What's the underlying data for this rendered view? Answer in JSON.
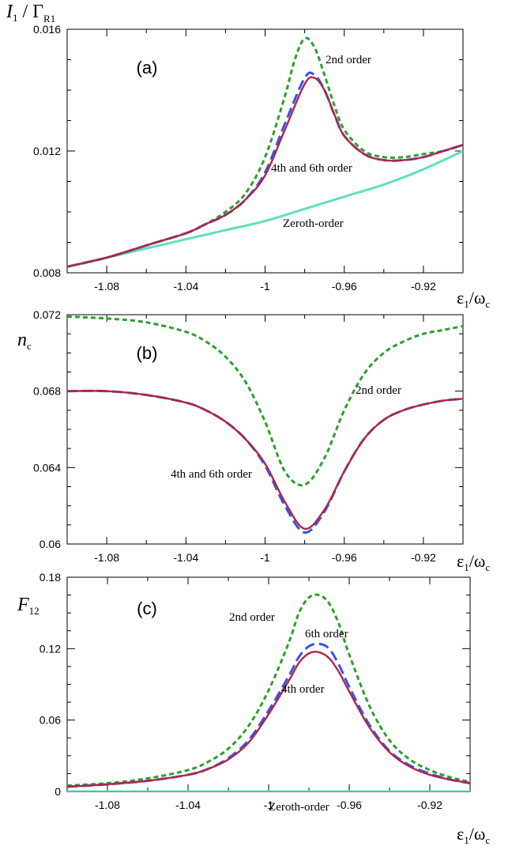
{
  "chart_data": [
    {
      "type": "line",
      "panel_label": "(a)",
      "ylabel": {
        "main": "I",
        "sub1": "1",
        "sep": " / Γ",
        "sub2": "R1"
      },
      "xlabel": {
        "main": "ε",
        "sub1": "1",
        "sep": "/ω",
        "sub2": "c"
      },
      "xlim": [
        -1.1,
        -0.9
      ],
      "ylim": [
        0.008,
        0.016
      ],
      "xticks": [
        -1.08,
        -1.04,
        -1,
        -0.96,
        -0.92
      ],
      "xtick_labels": [
        "-1.08",
        "-1.04",
        "-1",
        "-0.96",
        "-0.92"
      ],
      "yticks": [
        0.008,
        0.012,
        0.016
      ],
      "ytick_labels": [
        "0.008",
        "0.012",
        "0.016"
      ],
      "annotations": [
        "2nd order",
        "4th and 6th order",
        "Zeroth-order"
      ],
      "colors": {
        "zeroth": "#5fe0c0",
        "second": "#2ca02c",
        "sixth": "#3355ee",
        "fourth": "#e02020",
        "fourth_under": "#7a2a7a"
      },
      "series": [
        {
          "key": "zeroth",
          "x": [
            -1.1,
            -1.08,
            -1.06,
            -1.04,
            -1.02,
            -1.0,
            -0.98,
            -0.96,
            -0.94,
            -0.92,
            -0.9
          ],
          "y": [
            0.0082,
            0.0085,
            0.0088,
            0.0091,
            0.0094,
            0.0097,
            0.0101,
            0.0105,
            0.0109,
            0.0114,
            0.012
          ]
        },
        {
          "key": "second",
          "x": [
            -1.1,
            -1.08,
            -1.06,
            -1.04,
            -1.03,
            -1.02,
            -1.01,
            -1.0,
            -0.99,
            -0.985,
            -0.98,
            -0.975,
            -0.97,
            -0.965,
            -0.96,
            -0.95,
            -0.94,
            -0.93,
            -0.92,
            -0.91,
            -0.9
          ],
          "y": [
            0.0082,
            0.0085,
            0.0089,
            0.0093,
            0.0096,
            0.01,
            0.0106,
            0.0118,
            0.0138,
            0.015,
            0.0157,
            0.0154,
            0.0145,
            0.0135,
            0.0127,
            0.012,
            0.0118,
            0.0118,
            0.0119,
            0.012,
            0.0122
          ]
        },
        {
          "key": "sixth",
          "x": [
            -1.1,
            -1.08,
            -1.06,
            -1.04,
            -1.03,
            -1.02,
            -1.01,
            -1.0,
            -0.99,
            -0.98,
            -0.975,
            -0.97,
            -0.965,
            -0.96,
            -0.95,
            -0.94,
            -0.93,
            -0.92,
            -0.91,
            -0.9
          ],
          "y": [
            0.0082,
            0.0085,
            0.0089,
            0.0093,
            0.0096,
            0.0099,
            0.0104,
            0.0113,
            0.0129,
            0.0144,
            0.0145,
            0.014,
            0.0132,
            0.0125,
            0.0119,
            0.0117,
            0.0117,
            0.0118,
            0.012,
            0.0122
          ]
        },
        {
          "key": "fourth",
          "x": [
            -1.1,
            -1.08,
            -1.06,
            -1.04,
            -1.03,
            -1.02,
            -1.01,
            -1.0,
            -0.99,
            -0.98,
            -0.975,
            -0.97,
            -0.965,
            -0.96,
            -0.95,
            -0.94,
            -0.93,
            -0.92,
            -0.91,
            -0.9
          ],
          "y": [
            0.0082,
            0.0085,
            0.0089,
            0.0093,
            0.0096,
            0.0099,
            0.0104,
            0.0112,
            0.0127,
            0.0142,
            0.0144,
            0.014,
            0.0132,
            0.0125,
            0.0119,
            0.0117,
            0.0117,
            0.0118,
            0.012,
            0.0122
          ]
        }
      ]
    },
    {
      "type": "line",
      "panel_label": "(b)",
      "ylabel": {
        "main": "n",
        "sub1": "c",
        "sep": "",
        "sub2": ""
      },
      "xlabel": {
        "main": "ε",
        "sub1": "1",
        "sep": "/ω",
        "sub2": "c"
      },
      "xlim": [
        -1.1,
        -0.9
      ],
      "ylim": [
        0.06,
        0.072
      ],
      "xticks": [
        -1.08,
        -1.04,
        -1,
        -0.96,
        -0.92
      ],
      "xtick_labels": [
        "-1.08",
        "-1.04",
        "-1",
        "-0.96",
        "-0.92"
      ],
      "yticks": [
        0.06,
        0.064,
        0.068,
        0.072
      ],
      "ytick_labels": [
        "0.06",
        "0.064",
        "0.068",
        "0.072"
      ],
      "annotations": [
        "2nd order",
        "4th and 6th order"
      ],
      "colors": {
        "second": "#2ca02c",
        "sixth": "#3355ee",
        "fourth": "#e02020",
        "fourth_under": "#7a2a7a"
      },
      "series": [
        {
          "key": "second",
          "x": [
            -1.1,
            -1.08,
            -1.06,
            -1.04,
            -1.03,
            -1.02,
            -1.01,
            -1.0,
            -0.99,
            -0.98,
            -0.97,
            -0.96,
            -0.95,
            -0.94,
            -0.93,
            -0.92,
            -0.91,
            -0.9
          ],
          "y": [
            0.0719,
            0.0718,
            0.0716,
            0.0711,
            0.0706,
            0.0698,
            0.0685,
            0.0664,
            0.0638,
            0.0631,
            0.0645,
            0.067,
            0.0689,
            0.07,
            0.0706,
            0.071,
            0.0712,
            0.0714
          ]
        },
        {
          "key": "sixth",
          "x": [
            -1.1,
            -1.08,
            -1.06,
            -1.04,
            -1.03,
            -1.02,
            -1.01,
            -1.0,
            -0.99,
            -0.98,
            -0.97,
            -0.96,
            -0.95,
            -0.94,
            -0.93,
            -0.92,
            -0.91,
            -0.9
          ],
          "y": [
            0.068,
            0.068,
            0.0678,
            0.0674,
            0.067,
            0.0664,
            0.0655,
            0.0641,
            0.062,
            0.0606,
            0.0617,
            0.0638,
            0.0655,
            0.0665,
            0.067,
            0.0673,
            0.0675,
            0.0676
          ]
        },
        {
          "key": "fourth",
          "x": [
            -1.1,
            -1.08,
            -1.06,
            -1.04,
            -1.03,
            -1.02,
            -1.01,
            -1.0,
            -0.99,
            -0.98,
            -0.97,
            -0.96,
            -0.95,
            -0.94,
            -0.93,
            -0.92,
            -0.91,
            -0.9
          ],
          "y": [
            0.068,
            0.068,
            0.0678,
            0.0674,
            0.067,
            0.0664,
            0.0655,
            0.0642,
            0.0622,
            0.0608,
            0.0618,
            0.0638,
            0.0655,
            0.0665,
            0.067,
            0.0673,
            0.0675,
            0.0676
          ]
        }
      ]
    },
    {
      "type": "line",
      "panel_label": "(c)",
      "ylabel": {
        "main": "F",
        "sub1": "12",
        "sep": "",
        "sub2": ""
      },
      "xlabel": {
        "main": "ε",
        "sub1": "1",
        "sep": "/ω",
        "sub2": "c"
      },
      "xlim": [
        -1.1,
        -0.9
      ],
      "ylim": [
        0,
        0.18
      ],
      "xticks": [
        -1.08,
        -1.04,
        -1,
        -0.96,
        -0.92
      ],
      "xtick_labels": [
        "-1.08",
        "-1.04",
        "-1",
        "-0.96",
        "-0.92"
      ],
      "yticks": [
        0,
        0.06,
        0.12,
        0.18
      ],
      "ytick_labels": [
        "0",
        "0.06",
        "0.12",
        "0.18"
      ],
      "annotations": [
        "2nd order",
        "6th order",
        "4th order",
        "Zeroth-order"
      ],
      "colors": {
        "zeroth": "#5fe0c0",
        "second": "#2ca02c",
        "sixth": "#3355ee",
        "fourth": "#e02020",
        "fourth_under": "#7a2a7a"
      },
      "series": [
        {
          "key": "zeroth",
          "x": [
            -1.1,
            -0.9
          ],
          "y": [
            0.0,
            0.0
          ]
        },
        {
          "key": "second",
          "x": [
            -1.1,
            -1.08,
            -1.06,
            -1.04,
            -1.03,
            -1.02,
            -1.01,
            -1.0,
            -0.99,
            -0.985,
            -0.98,
            -0.975,
            -0.97,
            -0.965,
            -0.96,
            -0.95,
            -0.94,
            -0.93,
            -0.92,
            -0.91,
            -0.9
          ],
          "y": [
            0.005,
            0.007,
            0.011,
            0.018,
            0.025,
            0.036,
            0.055,
            0.085,
            0.125,
            0.15,
            0.163,
            0.165,
            0.158,
            0.14,
            0.115,
            0.072,
            0.043,
            0.027,
            0.018,
            0.012,
            0.008
          ]
        },
        {
          "key": "sixth",
          "x": [
            -1.1,
            -1.08,
            -1.06,
            -1.04,
            -1.03,
            -1.02,
            -1.01,
            -1.0,
            -0.99,
            -0.985,
            -0.98,
            -0.975,
            -0.97,
            -0.965,
            -0.96,
            -0.95,
            -0.94,
            -0.93,
            -0.92,
            -0.91,
            -0.9
          ],
          "y": [
            0.004,
            0.006,
            0.009,
            0.014,
            0.019,
            0.028,
            0.043,
            0.068,
            0.097,
            0.113,
            0.122,
            0.124,
            0.12,
            0.106,
            0.088,
            0.056,
            0.034,
            0.022,
            0.015,
            0.01,
            0.007
          ]
        },
        {
          "key": "fourth",
          "x": [
            -1.1,
            -1.08,
            -1.06,
            -1.04,
            -1.03,
            -1.02,
            -1.01,
            -1.0,
            -0.99,
            -0.985,
            -0.98,
            -0.975,
            -0.97,
            -0.965,
            -0.96,
            -0.95,
            -0.94,
            -0.93,
            -0.92,
            -0.91,
            -0.9
          ],
          "y": [
            0.004,
            0.006,
            0.009,
            0.014,
            0.019,
            0.027,
            0.041,
            0.065,
            0.093,
            0.108,
            0.116,
            0.117,
            0.112,
            0.1,
            0.084,
            0.054,
            0.033,
            0.021,
            0.014,
            0.01,
            0.007
          ]
        }
      ]
    }
  ]
}
